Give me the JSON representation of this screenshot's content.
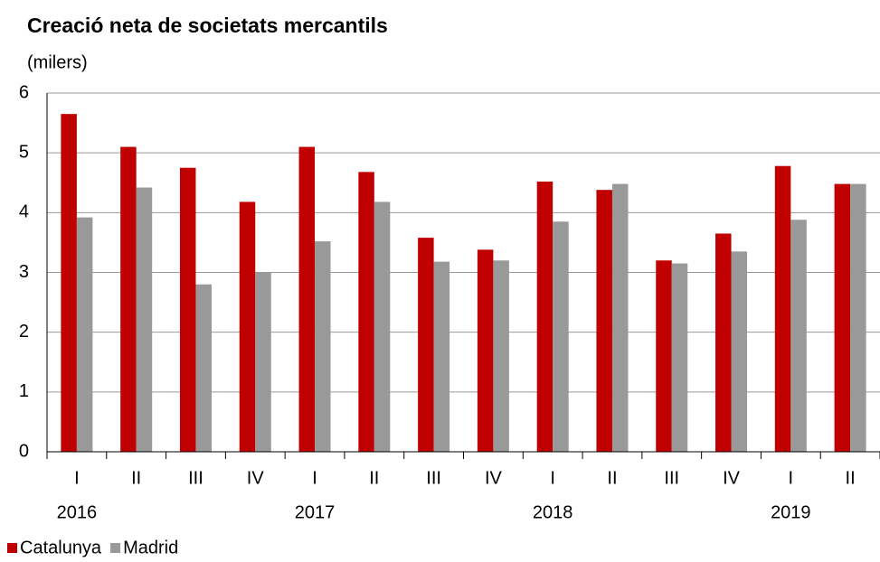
{
  "chart_data": {
    "type": "bar",
    "title": "Creació neta de societats mercantils",
    "subtitle": "(milers)",
    "categories": [
      "I",
      "II",
      "III",
      "IV",
      "I",
      "II",
      "III",
      "IV",
      "I",
      "II",
      "III",
      "IV",
      "I",
      "II"
    ],
    "groups": [
      {
        "label": "2016",
        "span": 4
      },
      {
        "label": "2017",
        "span": 4
      },
      {
        "label": "2018",
        "span": 4
      },
      {
        "label": "2019",
        "span": 2
      }
    ],
    "series": [
      {
        "name": "Catalunya",
        "color": "#c00000",
        "values": [
          5.65,
          5.1,
          4.75,
          4.18,
          5.1,
          4.68,
          3.58,
          3.38,
          4.52,
          4.38,
          3.2,
          3.65,
          4.78,
          4.48
        ]
      },
      {
        "name": "Madrid",
        "color": "#999999",
        "values": [
          3.92,
          4.42,
          2.8,
          3.0,
          3.52,
          4.18,
          3.18,
          3.2,
          3.85,
          4.48,
          3.15,
          3.35,
          3.88,
          4.48
        ]
      }
    ],
    "ylim": [
      0,
      6
    ],
    "yticks": [
      0,
      1,
      2,
      3,
      4,
      5,
      6
    ],
    "grid": true,
    "legend": "bottom-left"
  }
}
